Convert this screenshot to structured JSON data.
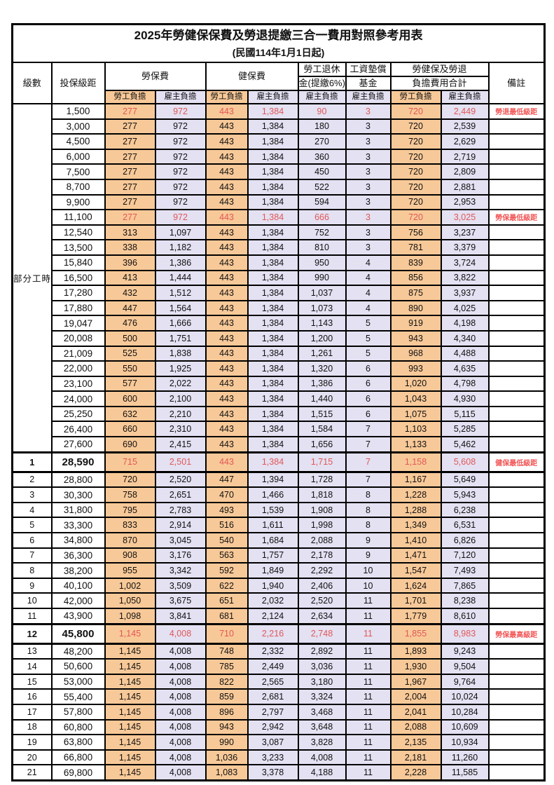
{
  "title": "2025年勞健保保費及勞退提繳三合一費用對照參考用表",
  "subtitle": "(民國114年1月1日起)",
  "header": {
    "level": "級數",
    "bracket": "投保級距",
    "labor_insurance": "勞保費",
    "health_insurance": "健保費",
    "pension_line1": "勞工退休",
    "pension_line2": "金(提繳6%)",
    "wage_fund_line1": "工資墊償",
    "wage_fund_line2": "基金",
    "total_line1": "勞健保及勞退",
    "total_line2": "負擔費用合計",
    "employee_share": "勞工負擔",
    "employer_share": "雇主負擔",
    "note": "備註"
  },
  "part_time_label": "部分工時",
  "part_time_rowspan": 23,
  "colors": {
    "employee_bg": "#F8C998",
    "employer_bg": "#E3E1F2",
    "highlight_red": "#E25757",
    "note_red": "#F25555"
  },
  "rows": [
    {
      "level": "",
      "bracket": "1,500",
      "values": [
        "277",
        "972",
        "443",
        "1,384",
        "90",
        "3",
        "720",
        "2,449"
      ],
      "note": "勞退最低級距",
      "red": true,
      "milestone": false
    },
    {
      "level": "",
      "bracket": "3,000",
      "values": [
        "277",
        "972",
        "443",
        "1,384",
        "180",
        "3",
        "720",
        "2,539"
      ],
      "note": "",
      "red": false,
      "milestone": false
    },
    {
      "level": "",
      "bracket": "4,500",
      "values": [
        "277",
        "972",
        "443",
        "1,384",
        "270",
        "3",
        "720",
        "2,629"
      ],
      "note": "",
      "red": false,
      "milestone": false
    },
    {
      "level": "",
      "bracket": "6,000",
      "values": [
        "277",
        "972",
        "443",
        "1,384",
        "360",
        "3",
        "720",
        "2,719"
      ],
      "note": "",
      "red": false,
      "milestone": false
    },
    {
      "level": "",
      "bracket": "7,500",
      "values": [
        "277",
        "972",
        "443",
        "1,384",
        "450",
        "3",
        "720",
        "2,809"
      ],
      "note": "",
      "red": false,
      "milestone": false
    },
    {
      "level": "",
      "bracket": "8,700",
      "values": [
        "277",
        "972",
        "443",
        "1,384",
        "522",
        "3",
        "720",
        "2,881"
      ],
      "note": "",
      "red": false,
      "milestone": false
    },
    {
      "level": "",
      "bracket": "9,900",
      "values": [
        "277",
        "972",
        "443",
        "1,384",
        "594",
        "3",
        "720",
        "2,953"
      ],
      "note": "",
      "red": false,
      "milestone": false
    },
    {
      "level": "",
      "bracket": "11,100",
      "values": [
        "277",
        "972",
        "443",
        "1,384",
        "666",
        "3",
        "720",
        "3,025"
      ],
      "note": "勞保最低級距",
      "red": true,
      "milestone": false
    },
    {
      "level": "",
      "bracket": "12,540",
      "values": [
        "313",
        "1,097",
        "443",
        "1,384",
        "752",
        "3",
        "756",
        "3,237"
      ],
      "note": "",
      "red": false,
      "milestone": false
    },
    {
      "level": "",
      "bracket": "13,500",
      "values": [
        "338",
        "1,182",
        "443",
        "1,384",
        "810",
        "3",
        "781",
        "3,379"
      ],
      "note": "",
      "red": false,
      "milestone": false
    },
    {
      "level": "",
      "bracket": "15,840",
      "values": [
        "396",
        "1,386",
        "443",
        "1,384",
        "950",
        "4",
        "839",
        "3,724"
      ],
      "note": "",
      "red": false,
      "milestone": false
    },
    {
      "level": "",
      "bracket": "16,500",
      "values": [
        "413",
        "1,444",
        "443",
        "1,384",
        "990",
        "4",
        "856",
        "3,822"
      ],
      "note": "",
      "red": false,
      "milestone": false
    },
    {
      "level": "",
      "bracket": "17,280",
      "values": [
        "432",
        "1,512",
        "443",
        "1,384",
        "1,037",
        "4",
        "875",
        "3,937"
      ],
      "note": "",
      "red": false,
      "milestone": false
    },
    {
      "level": "",
      "bracket": "17,880",
      "values": [
        "447",
        "1,564",
        "443",
        "1,384",
        "1,073",
        "4",
        "890",
        "4,025"
      ],
      "note": "",
      "red": false,
      "milestone": false
    },
    {
      "level": "",
      "bracket": "19,047",
      "values": [
        "476",
        "1,666",
        "443",
        "1,384",
        "1,143",
        "5",
        "919",
        "4,198"
      ],
      "note": "",
      "red": false,
      "milestone": false
    },
    {
      "level": "",
      "bracket": "20,008",
      "values": [
        "500",
        "1,751",
        "443",
        "1,384",
        "1,200",
        "5",
        "943",
        "4,340"
      ],
      "note": "",
      "red": false,
      "milestone": false
    },
    {
      "level": "",
      "bracket": "21,009",
      "values": [
        "525",
        "1,838",
        "443",
        "1,384",
        "1,261",
        "5",
        "968",
        "4,488"
      ],
      "note": "",
      "red": false,
      "milestone": false
    },
    {
      "level": "",
      "bracket": "22,000",
      "values": [
        "550",
        "1,925",
        "443",
        "1,384",
        "1,320",
        "6",
        "993",
        "4,635"
      ],
      "note": "",
      "red": false,
      "milestone": false
    },
    {
      "level": "",
      "bracket": "23,100",
      "values": [
        "577",
        "2,022",
        "443",
        "1,384",
        "1,386",
        "6",
        "1,020",
        "4,798"
      ],
      "note": "",
      "red": false,
      "milestone": false
    },
    {
      "level": "",
      "bracket": "24,000",
      "values": [
        "600",
        "2,100",
        "443",
        "1,384",
        "1,440",
        "6",
        "1,043",
        "4,930"
      ],
      "note": "",
      "red": false,
      "milestone": false
    },
    {
      "level": "",
      "bracket": "25,250",
      "values": [
        "632",
        "2,210",
        "443",
        "1,384",
        "1,515",
        "6",
        "1,075",
        "5,115"
      ],
      "note": "",
      "red": false,
      "milestone": false
    },
    {
      "level": "",
      "bracket": "26,400",
      "values": [
        "660",
        "2,310",
        "443",
        "1,384",
        "1,584",
        "7",
        "1,103",
        "5,285"
      ],
      "note": "",
      "red": false,
      "milestone": false
    },
    {
      "level": "",
      "bracket": "27,600",
      "values": [
        "690",
        "2,415",
        "443",
        "1,384",
        "1,656",
        "7",
        "1,133",
        "5,462"
      ],
      "note": "",
      "red": false,
      "milestone": false
    },
    {
      "level": "1",
      "bracket": "28,590",
      "values": [
        "715",
        "2,501",
        "443",
        "1,384",
        "1,715",
        "7",
        "1,158",
        "5,608"
      ],
      "note": "健保最低級距",
      "red": true,
      "milestone": true
    },
    {
      "level": "2",
      "bracket": "28,800",
      "values": [
        "720",
        "2,520",
        "447",
        "1,394",
        "1,728",
        "7",
        "1,167",
        "5,649"
      ],
      "note": "",
      "red": false,
      "milestone": false
    },
    {
      "level": "3",
      "bracket": "30,300",
      "values": [
        "758",
        "2,651",
        "470",
        "1,466",
        "1,818",
        "8",
        "1,228",
        "5,943"
      ],
      "note": "",
      "red": false,
      "milestone": false
    },
    {
      "level": "4",
      "bracket": "31,800",
      "values": [
        "795",
        "2,783",
        "493",
        "1,539",
        "1,908",
        "8",
        "1,288",
        "6,238"
      ],
      "note": "",
      "red": false,
      "milestone": false
    },
    {
      "level": "5",
      "bracket": "33,300",
      "values": [
        "833",
        "2,914",
        "516",
        "1,611",
        "1,998",
        "8",
        "1,349",
        "6,531"
      ],
      "note": "",
      "red": false,
      "milestone": false
    },
    {
      "level": "6",
      "bracket": "34,800",
      "values": [
        "870",
        "3,045",
        "540",
        "1,684",
        "2,088",
        "9",
        "1,410",
        "6,826"
      ],
      "note": "",
      "red": false,
      "milestone": false
    },
    {
      "level": "7",
      "bracket": "36,300",
      "values": [
        "908",
        "3,176",
        "563",
        "1,757",
        "2,178",
        "9",
        "1,471",
        "7,120"
      ],
      "note": "",
      "red": false,
      "milestone": false
    },
    {
      "level": "8",
      "bracket": "38,200",
      "values": [
        "955",
        "3,342",
        "592",
        "1,849",
        "2,292",
        "10",
        "1,547",
        "7,493"
      ],
      "note": "",
      "red": false,
      "milestone": false
    },
    {
      "level": "9",
      "bracket": "40,100",
      "values": [
        "1,002",
        "3,509",
        "622",
        "1,940",
        "2,406",
        "10",
        "1,624",
        "7,865"
      ],
      "note": "",
      "red": false,
      "milestone": false
    },
    {
      "level": "10",
      "bracket": "42,000",
      "values": [
        "1,050",
        "3,675",
        "651",
        "2,032",
        "2,520",
        "11",
        "1,701",
        "8,238"
      ],
      "note": "",
      "red": false,
      "milestone": false
    },
    {
      "level": "11",
      "bracket": "43,900",
      "values": [
        "1,098",
        "3,841",
        "681",
        "2,124",
        "2,634",
        "11",
        "1,779",
        "8,610"
      ],
      "note": "",
      "red": false,
      "milestone": false
    },
    {
      "level": "12",
      "bracket": "45,800",
      "values": [
        "1,145",
        "4,008",
        "710",
        "2,216",
        "2,748",
        "11",
        "1,855",
        "8,983"
      ],
      "note": "勞保最高級距",
      "red": true,
      "milestone": true
    },
    {
      "level": "13",
      "bracket": "48,200",
      "values": [
        "1,145",
        "4,008",
        "748",
        "2,332",
        "2,892",
        "11",
        "1,893",
        "9,243"
      ],
      "note": "",
      "red": false,
      "milestone": false
    },
    {
      "level": "14",
      "bracket": "50,600",
      "values": [
        "1,145",
        "4,008",
        "785",
        "2,449",
        "3,036",
        "11",
        "1,930",
        "9,504"
      ],
      "note": "",
      "red": false,
      "milestone": false
    },
    {
      "level": "15",
      "bracket": "53,000",
      "values": [
        "1,145",
        "4,008",
        "822",
        "2,565",
        "3,180",
        "11",
        "1,967",
        "9,764"
      ],
      "note": "",
      "red": false,
      "milestone": false
    },
    {
      "level": "16",
      "bracket": "55,400",
      "values": [
        "1,145",
        "4,008",
        "859",
        "2,681",
        "3,324",
        "11",
        "2,004",
        "10,024"
      ],
      "note": "",
      "red": false,
      "milestone": false
    },
    {
      "level": "17",
      "bracket": "57,800",
      "values": [
        "1,145",
        "4,008",
        "896",
        "2,797",
        "3,468",
        "11",
        "2,041",
        "10,284"
      ],
      "note": "",
      "red": false,
      "milestone": false
    },
    {
      "level": "18",
      "bracket": "60,800",
      "values": [
        "1,145",
        "4,008",
        "943",
        "2,942",
        "3,648",
        "11",
        "2,088",
        "10,609"
      ],
      "note": "",
      "red": false,
      "milestone": false
    },
    {
      "level": "19",
      "bracket": "63,800",
      "values": [
        "1,145",
        "4,008",
        "990",
        "3,087",
        "3,828",
        "11",
        "2,135",
        "10,934"
      ],
      "note": "",
      "red": false,
      "milestone": false
    },
    {
      "level": "20",
      "bracket": "66,800",
      "values": [
        "1,145",
        "4,008",
        "1,036",
        "3,233",
        "4,008",
        "11",
        "2,181",
        "11,260"
      ],
      "note": "",
      "red": false,
      "milestone": false
    },
    {
      "level": "21",
      "bracket": "69,800",
      "values": [
        "1,145",
        "4,008",
        "1,083",
        "3,378",
        "4,188",
        "11",
        "2,228",
        "11,585"
      ],
      "note": "",
      "red": false,
      "milestone": false
    }
  ]
}
